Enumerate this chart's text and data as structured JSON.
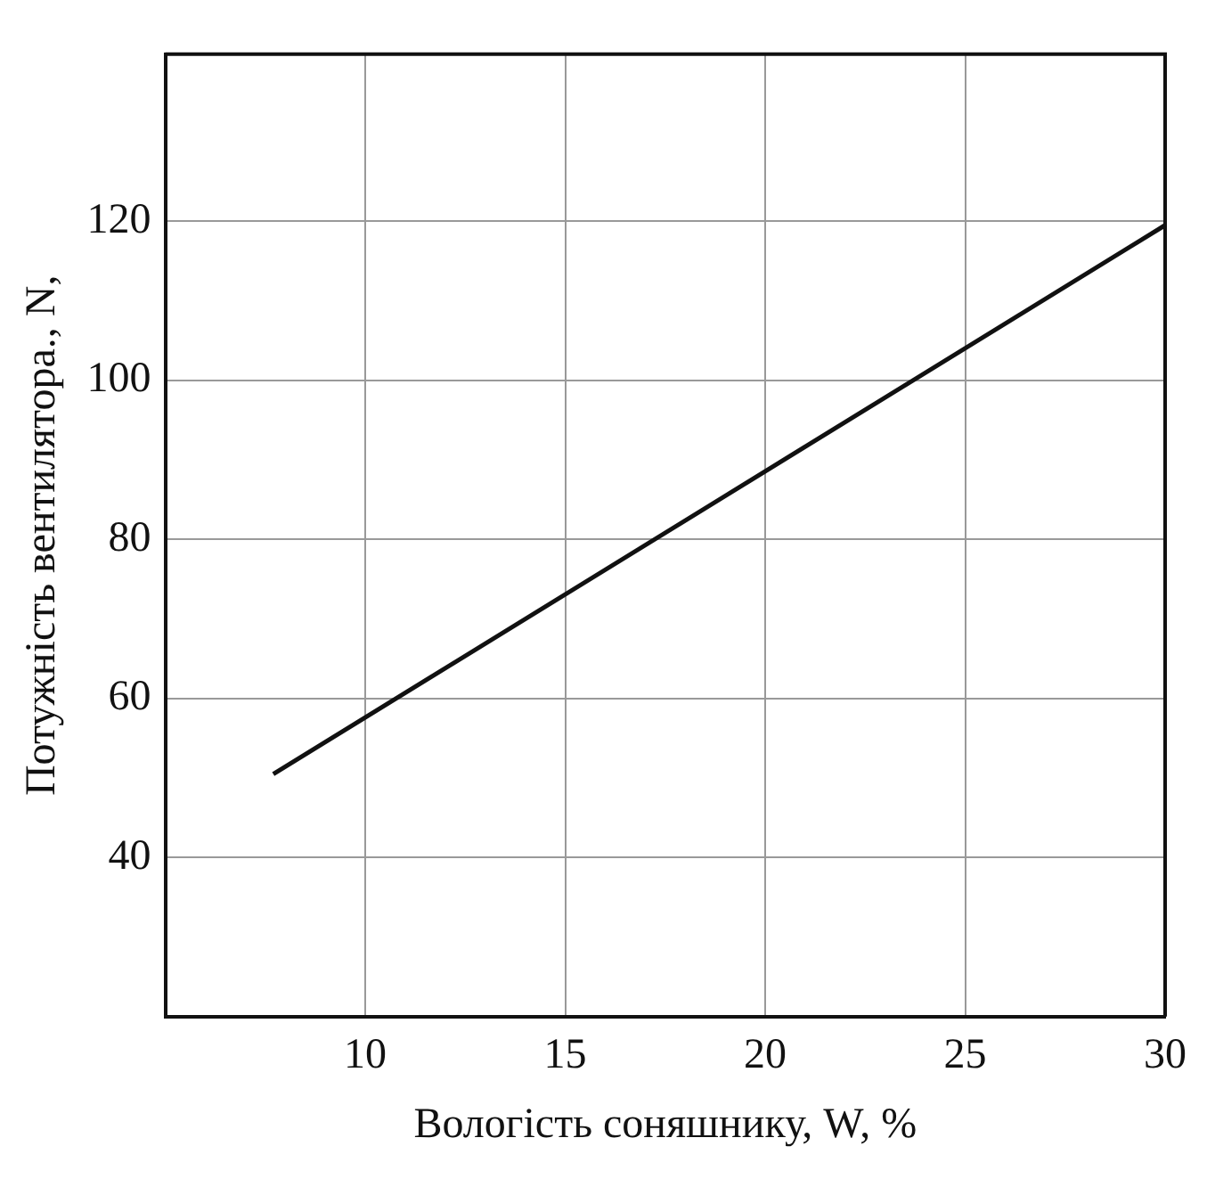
{
  "chart_data": {
    "type": "line",
    "xlabel": "Вологість соняшнику, W, %",
    "ylabel": "Потужність вентилятора., N,",
    "series": [
      {
        "color": "#111111",
        "x": [
          7.7,
          30
        ],
        "values": [
          50.5,
          119.5
        ]
      }
    ],
    "xlim": [
      5,
      30
    ],
    "xticks": [
      10,
      15,
      20,
      25,
      30
    ],
    "ylim": [
      20,
      141
    ],
    "yticks": [
      40,
      60,
      80,
      100,
      120
    ],
    "grid": true,
    "legend": false,
    "marker": "none",
    "line_style": "solid"
  }
}
